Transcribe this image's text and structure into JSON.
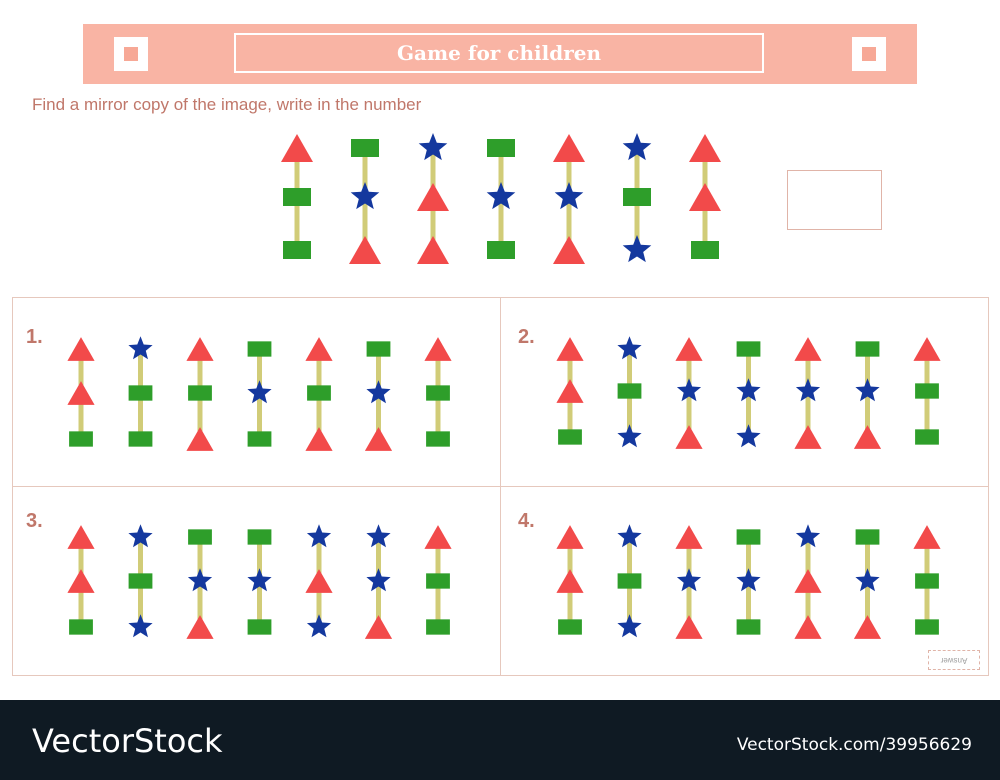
{
  "header": {
    "title": "Game for children"
  },
  "instruction": "Find a mirror copy of the image, write in the number",
  "colors": {
    "red": "#f24a4a",
    "green": "#2e9e2a",
    "blue": "#14389e",
    "pole": "#d1cc78"
  },
  "reference": [
    [
      "triangle",
      "square",
      "square"
    ],
    [
      "square",
      "star",
      "triangle"
    ],
    [
      "star",
      "triangle",
      "triangle"
    ],
    [
      "square",
      "star",
      "square"
    ],
    [
      "triangle",
      "star",
      "triangle"
    ],
    [
      "star",
      "square",
      "star"
    ],
    [
      "triangle",
      "triangle",
      "square"
    ]
  ],
  "options": [
    {
      "number": "1.",
      "columns": [
        [
          "triangle",
          "triangle",
          "square"
        ],
        [
          "star",
          "square",
          "square"
        ],
        [
          "triangle",
          "square",
          "triangle"
        ],
        [
          "square",
          "star",
          "square"
        ],
        [
          "triangle",
          "square",
          "triangle"
        ],
        [
          "square",
          "star",
          "triangle"
        ],
        [
          "triangle",
          "square",
          "square"
        ]
      ]
    },
    {
      "number": "2.",
      "columns": [
        [
          "triangle",
          "triangle",
          "square"
        ],
        [
          "star",
          "square",
          "star"
        ],
        [
          "triangle",
          "star",
          "triangle"
        ],
        [
          "square",
          "star",
          "star"
        ],
        [
          "triangle",
          "star",
          "triangle"
        ],
        [
          "square",
          "star",
          "triangle"
        ],
        [
          "triangle",
          "square",
          "square"
        ]
      ]
    },
    {
      "number": "3.",
      "columns": [
        [
          "triangle",
          "triangle",
          "square"
        ],
        [
          "star",
          "square",
          "star"
        ],
        [
          "square",
          "star",
          "triangle"
        ],
        [
          "square",
          "star",
          "square"
        ],
        [
          "star",
          "triangle",
          "star"
        ],
        [
          "star",
          "star",
          "triangle"
        ],
        [
          "triangle",
          "square",
          "square"
        ]
      ]
    },
    {
      "number": "4.",
      "columns": [
        [
          "triangle",
          "triangle",
          "square"
        ],
        [
          "star",
          "square",
          "star"
        ],
        [
          "triangle",
          "star",
          "triangle"
        ],
        [
          "square",
          "star",
          "square"
        ],
        [
          "star",
          "triangle",
          "triangle"
        ],
        [
          "square",
          "star",
          "triangle"
        ],
        [
          "triangle",
          "square",
          "square"
        ]
      ]
    }
  ],
  "answer_stamp": "Answer",
  "footer": {
    "brand": "VectorStock",
    "image_id": "VectorStock.com/39956629"
  }
}
